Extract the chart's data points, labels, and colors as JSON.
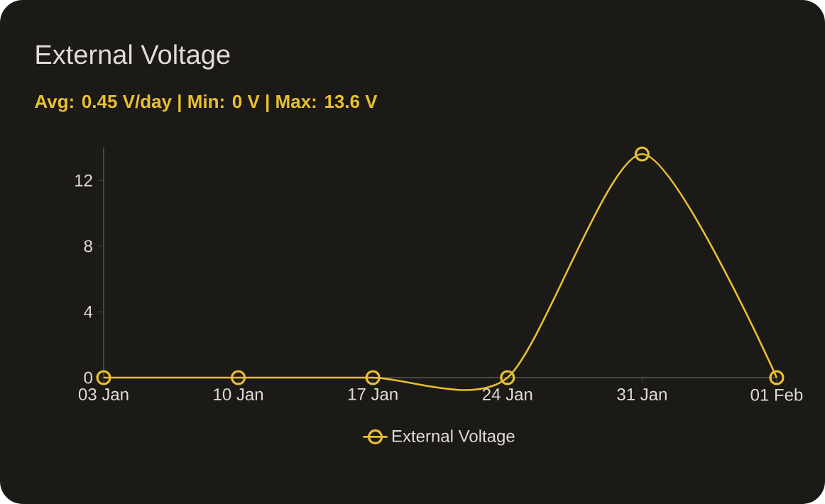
{
  "chart_data": {
    "type": "line",
    "title": "External Voltage",
    "subtitle": "Avg: 0.45 V/day | Min: 0 V | Max: 13.6 V",
    "categories": [
      "03 Jan",
      "10 Jan",
      "17 Jan",
      "24 Jan",
      "31 Jan",
      "01 Feb"
    ],
    "series": [
      {
        "name": "External Voltage",
        "color": "#e8c030",
        "values": [
          0,
          0,
          0,
          0,
          13.6,
          0
        ]
      }
    ],
    "ylim": [
      0,
      14
    ],
    "yticks": [
      0,
      4,
      8,
      12
    ],
    "grid": false,
    "legend": "bottom",
    "marker": "circle",
    "line_style": "solid"
  }
}
